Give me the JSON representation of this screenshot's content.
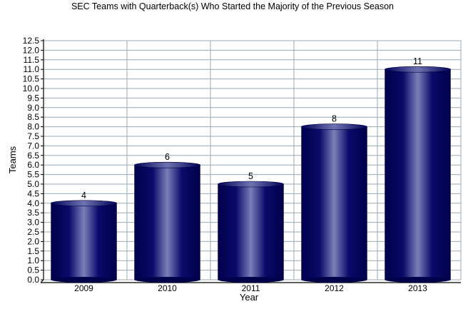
{
  "chart_data": {
    "type": "bar",
    "title": "SEC Teams with Quarterback(s) Who Started the Majority of the Previous Season",
    "xlabel": "Year",
    "ylabel": "Teams",
    "categories": [
      "2009",
      "2010",
      "2011",
      "2012",
      "2013"
    ],
    "values": [
      4,
      6,
      5,
      8,
      11
    ],
    "ylim": [
      0,
      12.5
    ],
    "ytick_step": 0.5,
    "ytick_labels": [
      "0.0",
      "0.5",
      "1.0",
      "1.5",
      "2.0",
      "2.5",
      "3.0",
      "3.5",
      "4.0",
      "4.5",
      "5.0",
      "5.5",
      "6.0",
      "6.5",
      "7.0",
      "7.5",
      "8.0",
      "8.5",
      "9.0",
      "9.5",
      "10.0",
      "10.5",
      "11.0",
      "11.5",
      "12.0",
      "12.5"
    ],
    "grid": true,
    "legend": "none",
    "bar_style": "3d-cylinder",
    "colors": {
      "bar_dark": "#00005a",
      "bar_light": "#7a7fb8",
      "grid": "#9aabb8",
      "axis": "#000000"
    }
  }
}
